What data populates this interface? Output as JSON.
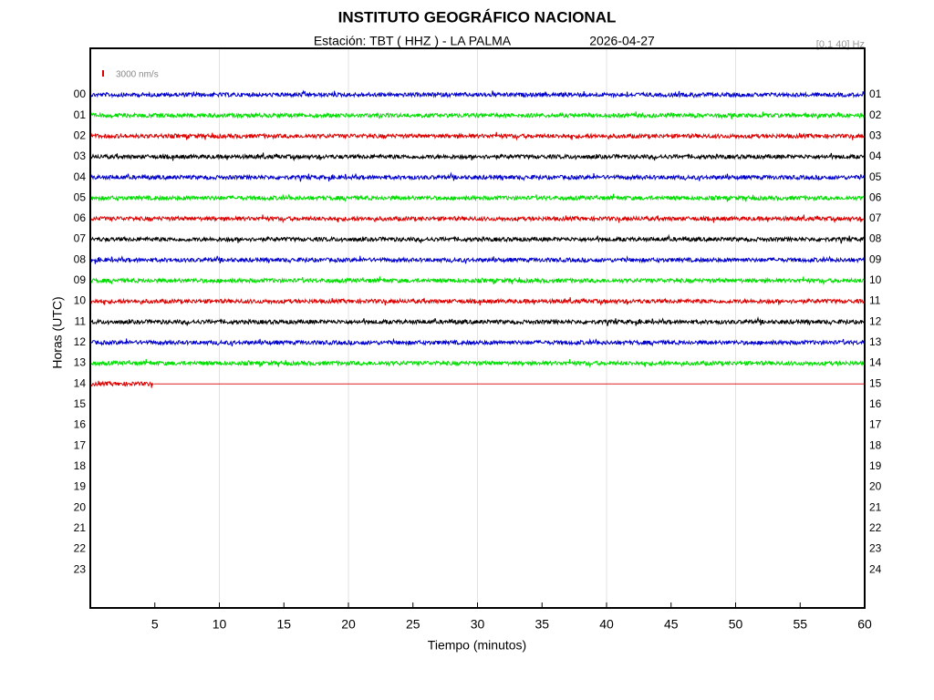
{
  "chart_data": {
    "type": "helicorder",
    "title": "INSTITUTO GEOGRÁFICO NACIONAL",
    "station": "Estación:  TBT ( HHZ ) - LA PALMA",
    "date": "2026-04-27",
    "filter": "[0.1 40] Hz",
    "scale_label": "3000 nm/s",
    "x_label": "Tiempo (minutos)",
    "y_label": "Horas (UTC)",
    "xlim": [
      0,
      60
    ],
    "xticks": [
      5,
      10,
      15,
      20,
      25,
      30,
      35,
      40,
      45,
      50,
      55,
      60
    ],
    "grid_step": 10,
    "ylim": [
      -2.25,
      24.85
    ],
    "y_inverted": true,
    "yticks": [
      {
        "value": 0,
        "label": "00"
      },
      {
        "value": 1,
        "label": "01"
      },
      {
        "value": 2,
        "label": "02"
      },
      {
        "value": 3,
        "label": "03"
      },
      {
        "value": 4,
        "label": "04"
      },
      {
        "value": 5,
        "label": "05"
      },
      {
        "value": 6,
        "label": "06"
      },
      {
        "value": 7,
        "label": "07"
      },
      {
        "value": 8,
        "label": "08"
      },
      {
        "value": 9,
        "label": "09"
      },
      {
        "value": 10,
        "label": "10"
      },
      {
        "value": 11,
        "label": "11"
      },
      {
        "value": 12,
        "label": "12"
      },
      {
        "value": 13,
        "label": "13"
      },
      {
        "value": 14,
        "label": "14"
      },
      {
        "value": 15,
        "label": "15"
      },
      {
        "value": 16,
        "label": "16"
      },
      {
        "value": 17,
        "label": "17"
      },
      {
        "value": 18,
        "label": "18"
      },
      {
        "value": 19,
        "label": "19"
      },
      {
        "value": 20,
        "label": "20"
      },
      {
        "value": 21,
        "label": "21"
      },
      {
        "value": 22,
        "label": "22"
      },
      {
        "value": 23,
        "label": "23"
      }
    ],
    "y2ticks": [
      {
        "value": 0,
        "label": "01"
      },
      {
        "value": 1,
        "label": "02"
      },
      {
        "value": 2,
        "label": "03"
      },
      {
        "value": 3,
        "label": "04"
      },
      {
        "value": 4,
        "label": "05"
      },
      {
        "value": 5,
        "label": "06"
      },
      {
        "value": 6,
        "label": "07"
      },
      {
        "value": 7,
        "label": "08"
      },
      {
        "value": 8,
        "label": "09"
      },
      {
        "value": 9,
        "label": "10"
      },
      {
        "value": 10,
        "label": "11"
      },
      {
        "value": 11,
        "label": "12"
      },
      {
        "value": 12,
        "label": "13"
      },
      {
        "value": 13,
        "label": "14"
      },
      {
        "value": 14,
        "label": "15"
      },
      {
        "value": 15,
        "label": "16"
      },
      {
        "value": 16,
        "label": "17"
      },
      {
        "value": 17,
        "label": "18"
      },
      {
        "value": 18,
        "label": "19"
      },
      {
        "value": 19,
        "label": "20"
      },
      {
        "value": 20,
        "label": "21"
      },
      {
        "value": 21,
        "label": "22"
      },
      {
        "value": 22,
        "label": "23"
      },
      {
        "value": 23,
        "label": "24"
      }
    ],
    "traces": [
      {
        "color": "#0000cc",
        "end": 60
      },
      {
        "color": "#00dd00",
        "end": 60
      },
      {
        "color": "#dd0000",
        "end": 60
      },
      {
        "color": "#000000",
        "end": 60
      },
      {
        "color": "#0000cc",
        "end": 60
      },
      {
        "color": "#00dd00",
        "end": 60
      },
      {
        "color": "#dd0000",
        "end": 60
      },
      {
        "color": "#000000",
        "end": 60
      },
      {
        "color": "#0000cc",
        "end": 60
      },
      {
        "color": "#00dd00",
        "end": 60
      },
      {
        "color": "#dd0000",
        "end": 60
      },
      {
        "color": "#000000",
        "end": 60
      },
      {
        "color": "#0000cc",
        "end": 60
      },
      {
        "color": "#00dd00",
        "end": 60
      },
      {
        "color": "#dd0000",
        "end": 4.9
      }
    ]
  }
}
